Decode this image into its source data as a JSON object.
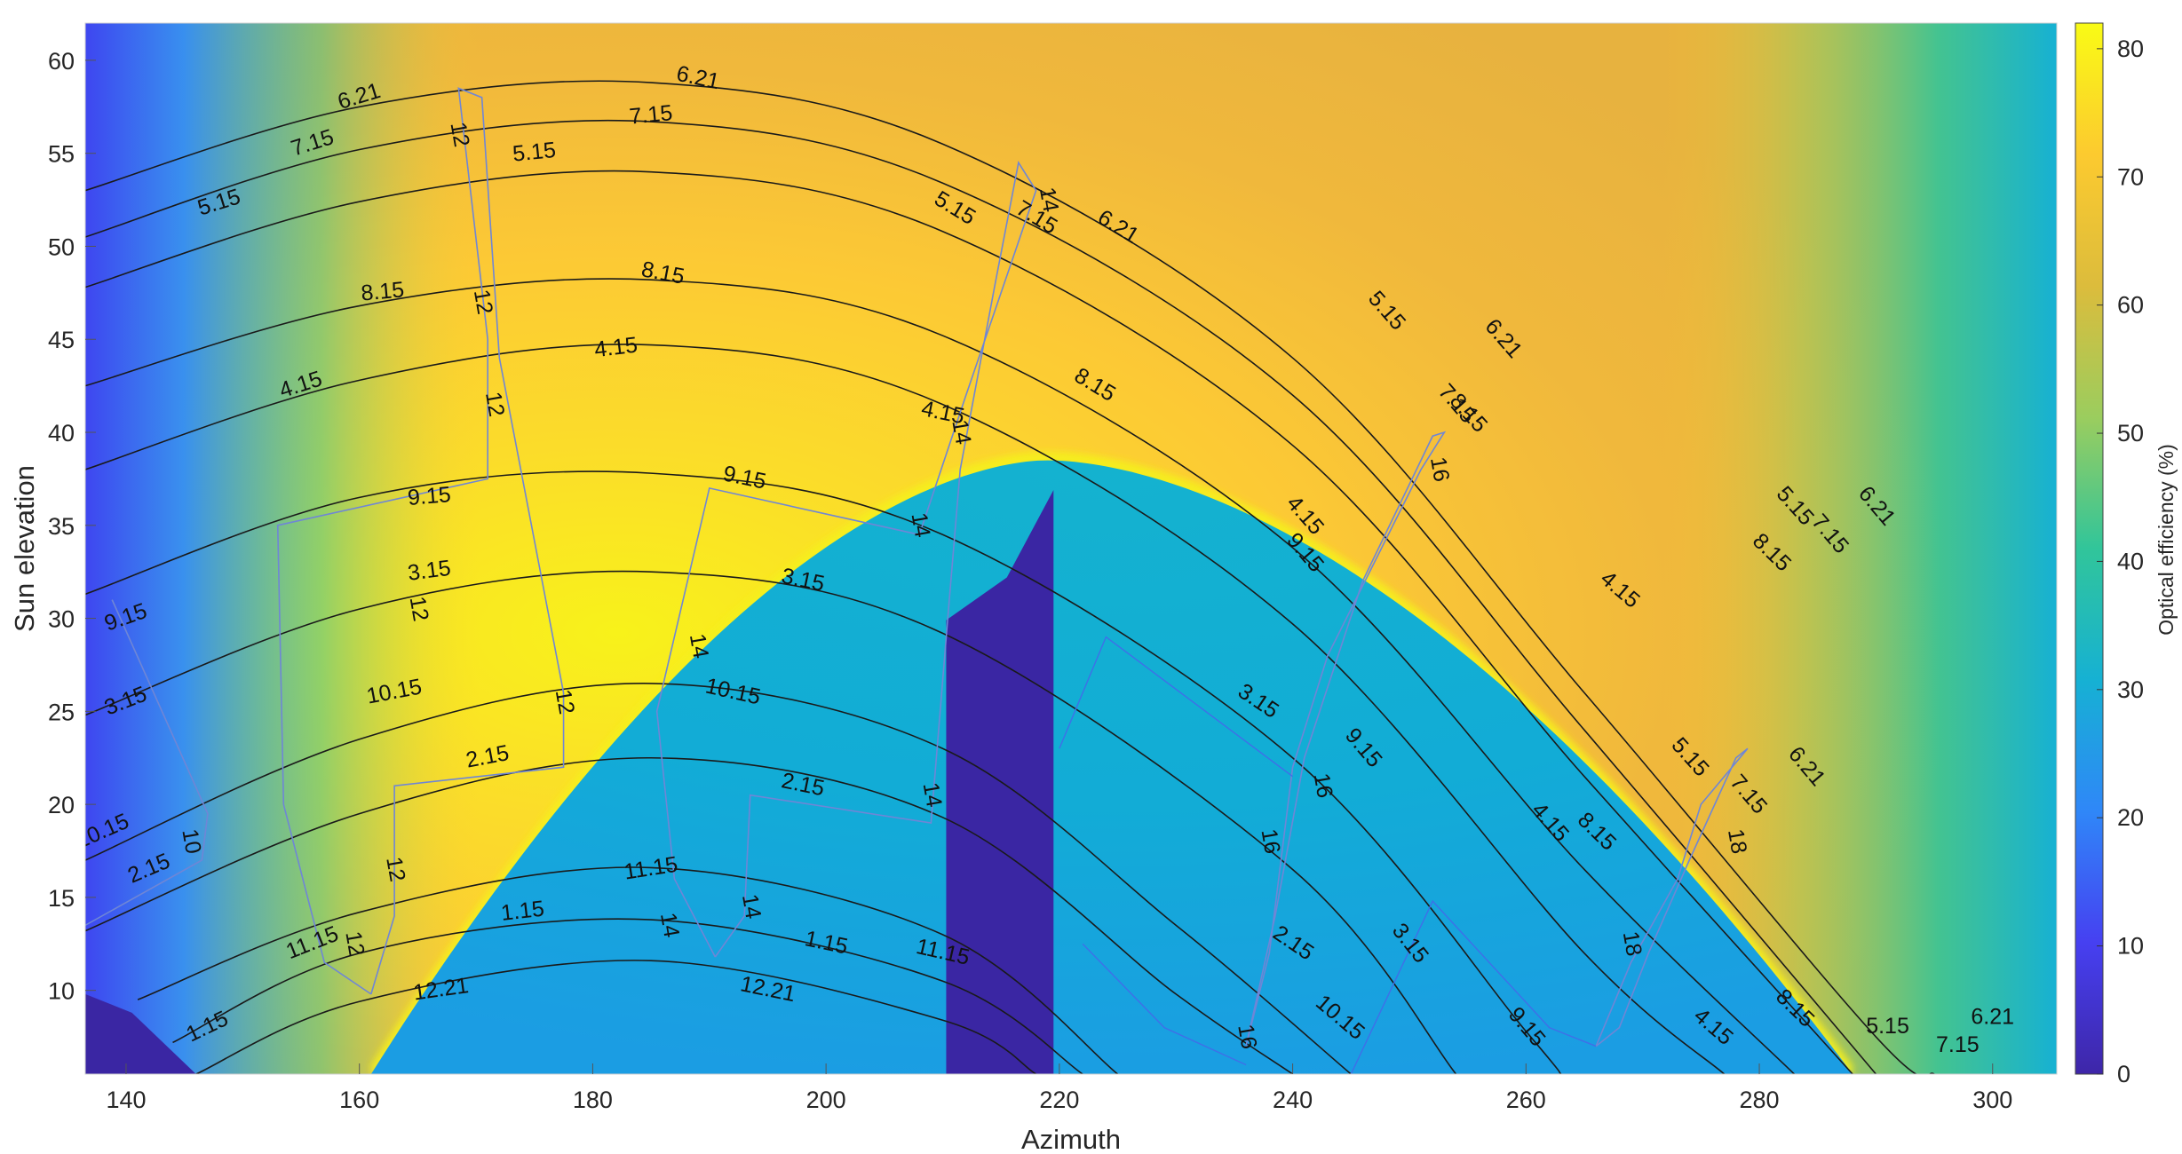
{
  "chart_data": {
    "type": "heatmap",
    "xlabel": "Azimuth",
    "ylabel": "Sun elevation",
    "xlim": [
      136.5,
      305.5
    ],
    "ylim": [
      5.5,
      62
    ],
    "x_ticks": [
      140,
      160,
      180,
      200,
      220,
      240,
      260,
      280,
      300
    ],
    "y_ticks": [
      10,
      15,
      20,
      25,
      30,
      35,
      40,
      45,
      50,
      55,
      60
    ],
    "grid": false,
    "colormap": "parula",
    "colorbar": {
      "label": "Optical efficiency (%)",
      "range": [
        0,
        82
      ],
      "ticks": [
        0,
        10,
        20,
        30,
        40,
        50,
        60,
        70,
        80
      ],
      "placement": "right"
    },
    "colormap_stops": [
      "#3e26a8",
      "#4640f1",
      "#2f87f8",
      "#16b1d3",
      "#31c59a",
      "#9bcd5e",
      "#dcbc3c",
      "#fcca2f",
      "#f9fb15"
    ],
    "shaded_region": {
      "description_value": 36,
      "apex_azimuth": 219,
      "apex_elevation": 38.5,
      "left_base_azimuth": 161,
      "right_base_azimuth": 288,
      "base_elevation": 5.5
    },
    "blocked_region": {
      "value": 0,
      "polygon": [
        [
          210.3,
          5.5
        ],
        [
          210.3,
          29.9
        ],
        [
          215.5,
          32.2
        ],
        [
          219.5,
          36.9
        ],
        [
          219.5,
          5.5
        ]
      ]
    },
    "corner_region": {
      "value": 0,
      "polygon": [
        [
          136.5,
          9.8
        ],
        [
          140.5,
          8.8
        ],
        [
          146,
          5.5
        ],
        [
          136.5,
          5.5
        ]
      ]
    },
    "date_curves": [
      {
        "label": "6.21",
        "points": [
          [
            136.5,
            53.0
          ],
          [
            160,
            57.5
          ],
          [
            185,
            58.8
          ],
          [
            210,
            55.5
          ],
          [
            240,
            44.0
          ],
          [
            265,
            26.0
          ],
          [
            290,
            7.5
          ],
          [
            295,
            5.5
          ]
        ]
      },
      {
        "label": "7.15",
        "points": [
          [
            136.5,
            50.5
          ],
          [
            160,
            55.2
          ],
          [
            185,
            56.7
          ],
          [
            210,
            53.4
          ],
          [
            240,
            42.0
          ],
          [
            265,
            24.0
          ],
          [
            290,
            5.5
          ]
        ]
      },
      {
        "label": "5.15",
        "points": [
          [
            136.5,
            47.8
          ],
          [
            160,
            52.4
          ],
          [
            185,
            54.0
          ],
          [
            210,
            50.8
          ],
          [
            240,
            39.3
          ],
          [
            265,
            21.5
          ],
          [
            288,
            5.5
          ]
        ]
      },
      {
        "label": "8.15",
        "points": [
          [
            136.5,
            42.5
          ],
          [
            160,
            46.8
          ],
          [
            185,
            48.2
          ],
          [
            210,
            45.2
          ],
          [
            240,
            33.8
          ],
          [
            265,
            16.5
          ],
          [
            283,
            5.5
          ]
        ]
      },
      {
        "label": "4.15",
        "points": [
          [
            136.5,
            38.0
          ],
          [
            160,
            42.8
          ],
          [
            185,
            44.7
          ],
          [
            210,
            41.5
          ],
          [
            240,
            29.7
          ],
          [
            265,
            12.0
          ],
          [
            277,
            5.5
          ]
        ]
      },
      {
        "label": "9.15",
        "points": [
          [
            136.5,
            31.3
          ],
          [
            160,
            36.5
          ],
          [
            185,
            37.8
          ],
          [
            210,
            34.5
          ],
          [
            240,
            22.5
          ],
          [
            260,
            7.8
          ],
          [
            263,
            5.5
          ]
        ]
      },
      {
        "label": "3.15",
        "points": [
          [
            136.5,
            24.8
          ],
          [
            160,
            30.5
          ],
          [
            185,
            32.5
          ],
          [
            210,
            29.2
          ],
          [
            240,
            16.5
          ],
          [
            254,
            5.5
          ]
        ]
      },
      {
        "label": "10.15",
        "points": [
          [
            136.5,
            17.0
          ],
          [
            160,
            23.5
          ],
          [
            185,
            26.5
          ],
          [
            210,
            23.0
          ],
          [
            230,
            13.5
          ],
          [
            245,
            5.5
          ]
        ]
      },
      {
        "label": "2.15",
        "points": [
          [
            136.5,
            13.2
          ],
          [
            160,
            19.5
          ],
          [
            185,
            22.5
          ],
          [
            210,
            19.3
          ],
          [
            230,
            9.8
          ],
          [
            240,
            5.5
          ]
        ]
      },
      {
        "label": "11.15",
        "points": [
          [
            141,
            9.5
          ],
          [
            160,
            14.2
          ],
          [
            185,
            16.6
          ],
          [
            210,
            13.0
          ],
          [
            225,
            5.5
          ]
        ]
      },
      {
        "label": "1.15",
        "points": [
          [
            144,
            7.2
          ],
          [
            160,
            12.0
          ],
          [
            185,
            13.8
          ],
          [
            210,
            10.5
          ],
          [
            222,
            5.5
          ]
        ]
      },
      {
        "label": "12.21",
        "points": [
          [
            146,
            5.5
          ],
          [
            160,
            9.4
          ],
          [
            185,
            11.6
          ],
          [
            210,
            8.4
          ],
          [
            218,
            5.5
          ]
        ]
      }
    ],
    "hour_curves": [
      {
        "label": "10",
        "points": [
          [
            136.5,
            13.5
          ],
          [
            146.5,
            17.0
          ],
          [
            147,
            19.5
          ],
          [
            138.8,
            31.0
          ]
        ]
      },
      {
        "label": "12",
        "points": [
          [
            161,
            9.8
          ],
          [
            157,
            11.5
          ],
          [
            153.5,
            20.0
          ],
          [
            153,
            35.0
          ],
          [
            171,
            37.5
          ],
          [
            171,
            45.0
          ],
          [
            168.5,
            58.5
          ],
          [
            170.5,
            58.0
          ],
          [
            172,
            44.0
          ],
          [
            177.5,
            26.0
          ],
          [
            177.5,
            22.0
          ],
          [
            163,
            21.0
          ],
          [
            163,
            14.0
          ],
          [
            161,
            9.8
          ]
        ]
      },
      {
        "label": "14",
        "points": [
          [
            190.5,
            11.8
          ],
          [
            187,
            16.0
          ],
          [
            185.5,
            25.0
          ],
          [
            190,
            37.0
          ],
          [
            208,
            34.5
          ],
          [
            212,
            42.0
          ],
          [
            218,
            53.0
          ],
          [
            216.5,
            54.5
          ],
          [
            214.5,
            48.0
          ],
          [
            211.5,
            38.0
          ],
          [
            210.5,
            30.5
          ],
          [
            209,
            19.0
          ],
          [
            193.5,
            20.5
          ],
          [
            193,
            14.0
          ],
          [
            190.5,
            11.8
          ]
        ]
      },
      {
        "label": "16",
        "points": [
          [
            236,
            7.0
          ],
          [
            238,
            12.0
          ],
          [
            240,
            22.0
          ],
          [
            243,
            28.0
          ],
          [
            251,
            38.0
          ],
          [
            253,
            40.0
          ],
          [
            252,
            39.8
          ],
          [
            246,
            32.0
          ],
          [
            241,
            22.5
          ],
          [
            238.5,
            14.0
          ],
          [
            236,
            7.0
          ]
        ]
      },
      {
        "label": "18",
        "points": [
          [
            266,
            7.0
          ],
          [
            269,
            11.5
          ],
          [
            273,
            16.0
          ],
          [
            275,
            20.0
          ],
          [
            279,
            23.0
          ],
          [
            278,
            22.5
          ],
          [
            274,
            17.0
          ],
          [
            270.5,
            12.0
          ],
          [
            268,
            8.0
          ],
          [
            266,
            7.0
          ]
        ]
      }
    ],
    "extra_blue_lines": [
      {
        "points": [
          [
            222,
            12.5
          ],
          [
            229,
            8.0
          ],
          [
            236,
            6.0
          ]
        ]
      },
      {
        "points": [
          [
            245,
            5.5
          ],
          [
            252,
            14.8
          ],
          [
            262,
            8.0
          ],
          [
            266,
            7.0
          ]
        ]
      },
      {
        "points": [
          [
            220,
            23.0
          ],
          [
            224,
            29.0
          ],
          [
            240,
            21.5
          ]
        ]
      }
    ],
    "date_label_positions": [
      {
        "label": "6.21",
        "at": [
          [
            160,
            58.0
          ],
          [
            189,
            59.0
          ],
          [
            225,
            51.0
          ],
          [
            258,
            45.0
          ],
          [
            290,
            36.0
          ],
          [
            284,
            22.0
          ],
          [
            300,
            8.5
          ]
        ]
      },
      {
        "label": "7.15",
        "at": [
          [
            156,
            55.5
          ],
          [
            185,
            57.0
          ],
          [
            218,
            51.5
          ],
          [
            254,
            41.5
          ],
          [
            286,
            34.5
          ],
          [
            279,
            20.5
          ],
          [
            297,
            7.0
          ]
        ]
      },
      {
        "label": "5.15",
        "at": [
          [
            148,
            52.3
          ],
          [
            175,
            55.0
          ],
          [
            211,
            52.0
          ],
          [
            248,
            46.5
          ],
          [
            283,
            36.0
          ],
          [
            274,
            22.5
          ],
          [
            291,
            8.0
          ]
        ]
      },
      {
        "label": "8.15",
        "at": [
          [
            162,
            47.5
          ],
          [
            186,
            48.5
          ],
          [
            223,
            42.5
          ],
          [
            255,
            41.0
          ],
          [
            281,
            33.5
          ],
          [
            266,
            18.5
          ],
          [
            283,
            9.0
          ]
        ]
      },
      {
        "label": "4.15",
        "at": [
          [
            155,
            42.5
          ],
          [
            182,
            44.5
          ],
          [
            210,
            41.0
          ],
          [
            241,
            35.5
          ],
          [
            268,
            31.5
          ],
          [
            262,
            19.0
          ],
          [
            276,
            8.0
          ]
        ]
      },
      {
        "label": "9.15",
        "at": [
          [
            140,
            30.0
          ],
          [
            166,
            36.5
          ],
          [
            193,
            37.5
          ],
          [
            241,
            33.5
          ],
          [
            246,
            23.0
          ],
          [
            260,
            8.0
          ]
        ]
      },
      {
        "label": "3.15",
        "at": [
          [
            140,
            25.5
          ],
          [
            166,
            32.5
          ],
          [
            198,
            32.0
          ],
          [
            237,
            25.5
          ],
          [
            250,
            12.5
          ]
        ]
      },
      {
        "label": "10.15",
        "at": [
          [
            138,
            18.5
          ],
          [
            163,
            26.0
          ],
          [
            192,
            26.0
          ],
          [
            244,
            8.5
          ]
        ]
      },
      {
        "label": "2.15",
        "at": [
          [
            142,
            16.5
          ],
          [
            171,
            22.5
          ],
          [
            198,
            21.0
          ],
          [
            240,
            12.5
          ]
        ]
      },
      {
        "label": "11.15",
        "at": [
          [
            156,
            12.5
          ],
          [
            185,
            16.5
          ],
          [
            210,
            12.0
          ]
        ]
      },
      {
        "label": "1.15",
        "at": [
          [
            147,
            8.0
          ],
          [
            174,
            14.2
          ],
          [
            200,
            12.5
          ]
        ]
      },
      {
        "label": "12.21",
        "at": [
          [
            167,
            10.0
          ],
          [
            195,
            10.0
          ]
        ]
      }
    ],
    "hour_label_positions": [
      {
        "label": "12",
        "at": [
          [
            168.5,
            56.0
          ],
          [
            170.5,
            47.0
          ],
          [
            171.5,
            41.5
          ],
          [
            165,
            30.5
          ],
          [
            177.5,
            25.5
          ],
          [
            163,
            16.5
          ],
          [
            159.5,
            12.5
          ]
        ]
      },
      {
        "label": "14",
        "at": [
          [
            219,
            52.5
          ],
          [
            211.5,
            40.0
          ],
          [
            208,
            35.0
          ],
          [
            189,
            28.5
          ],
          [
            193.5,
            14.5
          ],
          [
            186.5,
            13.5
          ],
          [
            209,
            20.5
          ]
        ]
      },
      {
        "label": "16",
        "at": [
          [
            252.5,
            38.0
          ],
          [
            242.5,
            21.0
          ],
          [
            238,
            18.0
          ],
          [
            236,
            7.5
          ]
        ]
      },
      {
        "label": "18",
        "at": [
          [
            269,
            12.5
          ],
          [
            278,
            18.0
          ]
        ]
      },
      {
        "label": "10",
        "at": [
          [
            145.5,
            18.0
          ]
        ]
      }
    ]
  }
}
